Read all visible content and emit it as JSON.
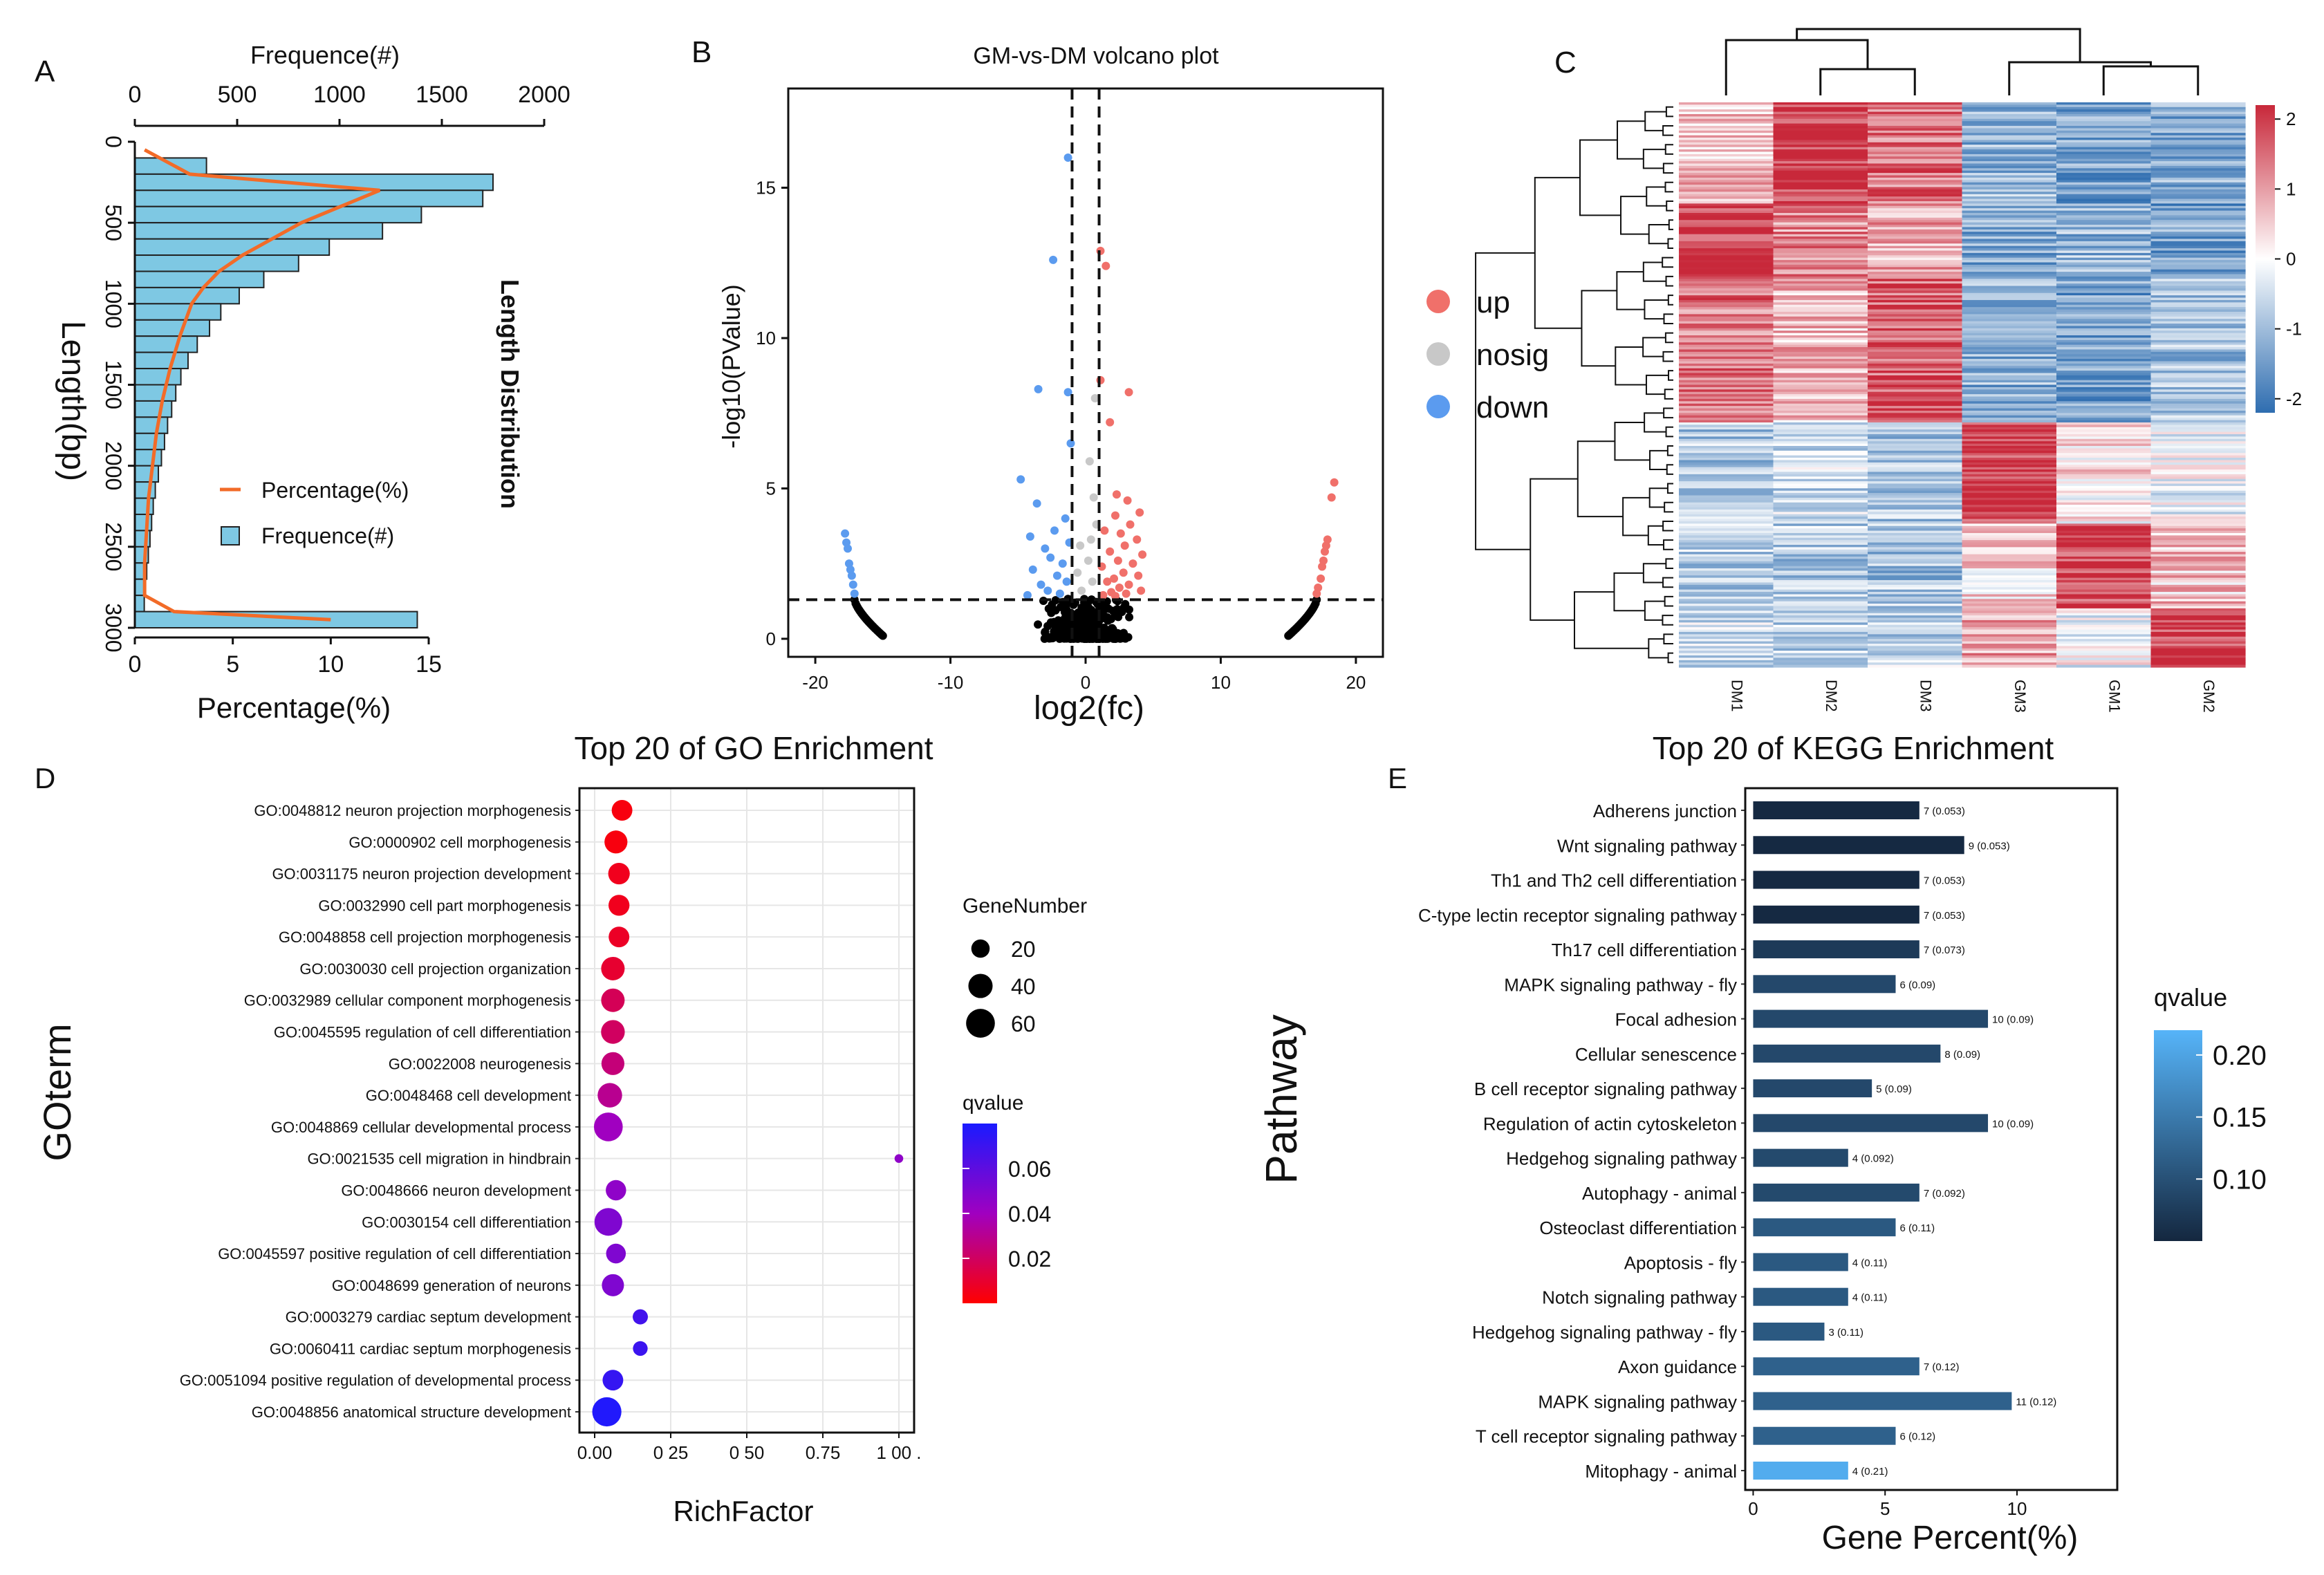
{
  "colors": {
    "bar_fill": "#7ec8e3",
    "line": "#f26b28",
    "up": "#f0706a",
    "nosig": "#c8c8c8",
    "down": "#5b9bef",
    "heat_high": "#c8283a",
    "heat_mid": "#ffffff",
    "heat_low": "#2e6db0",
    "kegg_dark": "#14273f",
    "kegg_light": "#56b4f9"
  },
  "panels": {
    "a": "A",
    "b": "B",
    "c": "C",
    "d": "D",
    "e": "E"
  },
  "chart_data": [
    {
      "id": "A",
      "type": "bar",
      "title": "Length Distribution",
      "ylabel": "Length(bp)",
      "x_top_label": "Frequence(#)",
      "x_bottom_label": "Percentage(%)",
      "y_ticks": [
        "0",
        "500",
        "1000",
        "1500",
        "2000",
        "2500",
        "3000"
      ],
      "y_tick_values": [
        0,
        500,
        1000,
        1500,
        2000,
        2500,
        3000
      ],
      "top_ticks": [
        "0",
        "500",
        "1000",
        "1500",
        "2000"
      ],
      "top_tick_values": [
        0,
        500,
        1000,
        1500,
        2000
      ],
      "bottom_ticks": [
        "0",
        "5",
        "10",
        "15"
      ],
      "bottom_tick_values": [
        0,
        5,
        10,
        15
      ],
      "ylim": [
        0,
        3000
      ],
      "freq_lim": [
        0,
        2000
      ],
      "pct_lim": [
        0,
        15
      ],
      "bin_starts": [
        100,
        200,
        300,
        400,
        500,
        600,
        700,
        800,
        900,
        1000,
        1100,
        1200,
        1300,
        1400,
        1500,
        1600,
        1700,
        1800,
        1900,
        2000,
        2100,
        2200,
        2300,
        2400,
        2500,
        2600,
        2700,
        2800,
        2900
      ],
      "bin_width": 100,
      "frequence": [
        350,
        1750,
        1700,
        1400,
        1210,
        950,
        800,
        630,
        510,
        420,
        365,
        305,
        260,
        225,
        200,
        180,
        160,
        145,
        130,
        115,
        100,
        90,
        82,
        74,
        66,
        58,
        52,
        46,
        1380
      ],
      "percentage_curve": {
        "length": [
          50,
          200,
          300,
          400,
          500,
          600,
          700,
          800,
          900,
          1000,
          1200,
          1400,
          1600,
          1800,
          2000,
          2200,
          2400,
          2600,
          2800,
          2900,
          2950
        ],
        "value": [
          0.5,
          2.8,
          12.5,
          10.5,
          8.5,
          7.0,
          5.5,
          4.3,
          3.5,
          2.9,
          2.3,
          1.8,
          1.4,
          1.1,
          0.9,
          0.7,
          0.6,
          0.5,
          0.5,
          2.0,
          10.0
        ]
      },
      "legend": [
        {
          "label": "Percentage(%)",
          "kind": "line"
        },
        {
          "label": "Frequence(#)",
          "kind": "bar"
        }
      ]
    },
    {
      "id": "B",
      "type": "scatter",
      "title": "GM-vs-DM volcano plot",
      "xlabel": "log2(fc)",
      "ylabel": "-log10(PValue)",
      "xlim": [
        -22,
        22
      ],
      "ylim": [
        -0.6,
        18.3
      ],
      "x_ticks": [
        "-20",
        "-10",
        "0",
        "10",
        "20"
      ],
      "x_tick_values": [
        -20,
        -10,
        0,
        10,
        20
      ],
      "y_ticks": [
        "0",
        "5",
        "10",
        "15"
      ],
      "y_tick_values": [
        0,
        5,
        10,
        15
      ],
      "thresholds": {
        "fc": [
          -1,
          1
        ],
        "p": 1.3
      },
      "legend": [
        {
          "label": "up",
          "group": "up"
        },
        {
          "label": "nosig",
          "group": "nosig"
        },
        {
          "label": "down",
          "group": "down"
        }
      ],
      "points": {
        "up": [
          [
            1.1,
            12.9
          ],
          [
            1.5,
            12.4
          ],
          [
            1.1,
            8.6
          ],
          [
            3.2,
            8.2
          ],
          [
            1.8,
            7.2
          ],
          [
            18.4,
            5.2
          ],
          [
            18.2,
            4.7
          ],
          [
            2.3,
            4.8
          ],
          [
            3.1,
            4.6
          ],
          [
            2.2,
            4.1
          ],
          [
            4.0,
            4.2
          ],
          [
            3.3,
            3.8
          ],
          [
            1.4,
            3.6
          ],
          [
            2.6,
            3.5
          ],
          [
            3.8,
            3.3
          ],
          [
            2.9,
            3.1
          ],
          [
            1.8,
            2.9
          ],
          [
            4.2,
            2.8
          ],
          [
            2.4,
            2.6
          ],
          [
            3.5,
            2.5
          ],
          [
            1.2,
            2.4
          ],
          [
            2.8,
            2.2
          ],
          [
            3.9,
            2.1
          ],
          [
            2.1,
            2.0
          ],
          [
            1.6,
            1.9
          ],
          [
            3.2,
            1.8
          ],
          [
            2.5,
            1.7
          ],
          [
            4.1,
            1.6
          ],
          [
            1.9,
            1.55
          ],
          [
            3.0,
            1.5
          ],
          [
            1.3,
            1.45
          ],
          [
            2.2,
            1.42
          ],
          [
            17.9,
            3.3
          ],
          [
            17.7,
            2.9
          ],
          [
            17.5,
            2.4
          ],
          [
            17.4,
            2.0
          ],
          [
            17.2,
            1.7
          ],
          [
            17.1,
            1.5
          ],
          [
            17.8,
            3.1
          ],
          [
            17.6,
            2.6
          ]
        ],
        "nosig": [
          [
            0.7,
            8.0
          ],
          [
            0.3,
            5.9
          ],
          [
            0.6,
            4.7
          ],
          [
            0.8,
            3.8
          ],
          [
            0.4,
            3.3
          ],
          [
            -0.4,
            3.1
          ],
          [
            0.2,
            2.6
          ],
          [
            -0.6,
            2.2
          ],
          [
            0.5,
            1.9
          ],
          [
            -0.3,
            1.6
          ]
        ],
        "down": [
          [
            -1.3,
            16.0
          ],
          [
            -2.4,
            12.6
          ],
          [
            -3.5,
            8.3
          ],
          [
            -1.3,
            8.2
          ],
          [
            -1.1,
            6.5
          ],
          [
            -4.8,
            5.3
          ],
          [
            -3.6,
            4.5
          ],
          [
            -1.5,
            4.0
          ],
          [
            -2.3,
            3.6
          ],
          [
            -4.1,
            3.4
          ],
          [
            -1.2,
            3.2
          ],
          [
            -3.0,
            3.0
          ],
          [
            -2.6,
            2.7
          ],
          [
            -1.7,
            2.5
          ],
          [
            -3.9,
            2.3
          ],
          [
            -2.1,
            2.1
          ],
          [
            -1.4,
            1.9
          ],
          [
            -3.3,
            1.8
          ],
          [
            -2.8,
            1.6
          ],
          [
            -1.9,
            1.5
          ],
          [
            -4.3,
            1.45
          ],
          [
            -17.8,
            3.5
          ],
          [
            -17.6,
            3.0
          ],
          [
            -17.5,
            2.5
          ],
          [
            -17.3,
            2.1
          ],
          [
            -17.2,
            1.8
          ],
          [
            -17.1,
            1.5
          ],
          [
            -17.7,
            3.2
          ],
          [
            -17.4,
            2.3
          ]
        ],
        "ns_arcs": [
          [
            -17.1,
            1.3,
            -15.0,
            0.1
          ],
          [
            17.1,
            1.3,
            15.0,
            0.1
          ]
        ]
      }
    },
    {
      "id": "C",
      "type": "heatmap",
      "columns": [
        "DM1",
        "DM2",
        "DM3",
        "GM3",
        "GM1",
        "GM2"
      ],
      "colorbar_ticks": [
        "2",
        "1",
        "0",
        "-1",
        "-2"
      ],
      "colorbar_values": [
        2,
        1,
        0,
        -1,
        -2
      ],
      "zlim": [
        -2.2,
        2.2
      ],
      "row_groups": [
        {
          "fraction": 0.18,
          "values": [
            0.6,
            2.1,
            1.4,
            -1.1,
            -1.4,
            -1.2
          ]
        },
        {
          "fraction": 0.13,
          "values": [
            1.9,
            1.2,
            0.9,
            -1.3,
            -1.1,
            -1.4
          ]
        },
        {
          "fraction": 0.26,
          "values": [
            1.4,
            0.7,
            1.6,
            -1.2,
            -1.4,
            -1.0
          ]
        },
        {
          "fraction": 0.18,
          "values": [
            -0.8,
            -0.6,
            -0.9,
            2.0,
            0.3,
            -0.2
          ]
        },
        {
          "fraction": 0.15,
          "values": [
            -0.7,
            -0.8,
            -0.9,
            0.4,
            1.9,
            0.6
          ]
        },
        {
          "fraction": 0.1,
          "values": [
            -0.6,
            -0.8,
            -0.7,
            0.9,
            -0.1,
            2.0
          ]
        }
      ],
      "row_count": 240
    },
    {
      "id": "D",
      "type": "scatter",
      "title": "Top 20 of GO Enrichment",
      "xlabel": "RichFactor",
      "ylabel": "GOterm",
      "xlim": [
        -0.05,
        1.05
      ],
      "x_ticks": [
        "0.00",
        "0 25",
        "0 50",
        "0.75",
        "1 00 ."
      ],
      "x_tick_values": [
        0,
        0.25,
        0.5,
        0.75,
        1.0
      ],
      "size_legend_title": "GeneNumber",
      "size_legend": [
        "20",
        "40",
        "60"
      ],
      "size_legend_values": [
        20,
        40,
        60
      ],
      "color_legend_title": "qvalue",
      "color_legend_ticks": [
        "0.06",
        "0.04",
        "0.02"
      ],
      "color_legend_values": [
        0.06,
        0.04,
        0.02
      ],
      "qlim": [
        0.0,
        0.08
      ],
      "terms": [
        {
          "label": "GO:0048812 neuron projection morphogenesis",
          "rich": 0.09,
          "gene": 27,
          "q": 0.003
        },
        {
          "label": "GO:0000902 cell morphogenesis",
          "rich": 0.07,
          "gene": 35,
          "q": 0.003
        },
        {
          "label": "GO:0031175 neuron projection development",
          "rich": 0.08,
          "gene": 30,
          "q": 0.006
        },
        {
          "label": "GO:0032990 cell part morphogenesis",
          "rich": 0.08,
          "gene": 28,
          "q": 0.006
        },
        {
          "label": "GO:0048858 cell projection morphogenesis",
          "rich": 0.08,
          "gene": 27,
          "q": 0.008
        },
        {
          "label": "GO:0030030 cell projection organization",
          "rich": 0.06,
          "gene": 37,
          "q": 0.01
        },
        {
          "label": "GO:0032989 cellular component morphogenesis",
          "rich": 0.06,
          "gene": 37,
          "q": 0.018
        },
        {
          "label": "GO:0045595 regulation of cell differentiation",
          "rich": 0.06,
          "gene": 38,
          "q": 0.02
        },
        {
          "label": "GO:0022008 neurogenesis",
          "rich": 0.06,
          "gene": 35,
          "q": 0.025
        },
        {
          "label": "GO:0048468 cell development",
          "rich": 0.05,
          "gene": 41,
          "q": 0.03
        },
        {
          "label": "GO:0048869 cellular developmental process",
          "rich": 0.045,
          "gene": 60,
          "q": 0.04
        },
        {
          "label": "GO:0021535 cell migration in hindbrain",
          "rich": 1.0,
          "gene": 2,
          "q": 0.045
        },
        {
          "label": "GO:0048666 neuron development",
          "rich": 0.07,
          "gene": 26,
          "q": 0.045
        },
        {
          "label": "GO:0030154 cell differentiation",
          "rich": 0.045,
          "gene": 55,
          "q": 0.05
        },
        {
          "label": "GO:0045597 positive regulation of cell differentiation",
          "rich": 0.07,
          "gene": 24,
          "q": 0.05
        },
        {
          "label": "GO:0048699 generation of neurons",
          "rich": 0.06,
          "gene": 32,
          "q": 0.05
        },
        {
          "label": "GO:0003279 cardiac septum development",
          "rich": 0.15,
          "gene": 12,
          "q": 0.068
        },
        {
          "label": "GO:0060411 cardiac septum morphogenesis",
          "rich": 0.15,
          "gene": 11,
          "q": 0.07
        },
        {
          "label": "GO:0051094 positive regulation of developmental process",
          "rich": 0.06,
          "gene": 27,
          "q": 0.072
        },
        {
          "label": "GO:0048856 anatomical structure development",
          "rich": 0.04,
          "gene": 62,
          "q": 0.078
        }
      ]
    },
    {
      "id": "E",
      "type": "bar",
      "orientation": "horizontal",
      "title": "Top 20 of KEGG Enrichment",
      "xlabel": "Gene Percent(%)",
      "ylabel": "Pathway",
      "xlim": [
        -0.3,
        13.8
      ],
      "x_ticks": [
        "0",
        "5",
        "10"
      ],
      "x_tick_values": [
        0,
        5,
        10
      ],
      "color_legend_title": "qvalue",
      "color_legend_ticks": [
        "0.20",
        "0.15",
        "0.10"
      ],
      "color_legend_values": [
        0.2,
        0.15,
        0.1
      ],
      "qlim": [
        0.05,
        0.22
      ],
      "pathways": [
        {
          "label": "Adherens junction",
          "value": 6.3,
          "bar_label": "7 (0.053)",
          "q": 0.053
        },
        {
          "label": "Wnt signaling pathway",
          "value": 8.0,
          "bar_label": "9 (0.053)",
          "q": 0.053
        },
        {
          "label": "Th1 and Th2 cell differentiation",
          "value": 6.3,
          "bar_label": "7 (0.053)",
          "q": 0.053
        },
        {
          "label": "C-type lectin receptor signaling pathway",
          "value": 6.3,
          "bar_label": "7 (0.053)",
          "q": 0.053
        },
        {
          "label": "Th17 cell differentiation",
          "value": 6.3,
          "bar_label": "7 (0.073)",
          "q": 0.073
        },
        {
          "label": "MAPK signaling pathway - fly",
          "value": 5.4,
          "bar_label": "6 (0.09)",
          "q": 0.09
        },
        {
          "label": "Focal adhesion",
          "value": 8.9,
          "bar_label": "10 (0.09)",
          "q": 0.09
        },
        {
          "label": "Cellular senescence",
          "value": 7.1,
          "bar_label": "8 (0.09)",
          "q": 0.09
        },
        {
          "label": "B cell receptor signaling pathway",
          "value": 4.5,
          "bar_label": "5 (0.09)",
          "q": 0.09
        },
        {
          "label": "Regulation of actin cytoskeleton",
          "value": 8.9,
          "bar_label": "10 (0.09)",
          "q": 0.09
        },
        {
          "label": "Hedgehog signaling pathway",
          "value": 3.6,
          "bar_label": "4 (0.092)",
          "q": 0.092
        },
        {
          "label": "Autophagy - animal",
          "value": 6.3,
          "bar_label": "7 (0.092)",
          "q": 0.092
        },
        {
          "label": "Osteoclast differentiation",
          "value": 5.4,
          "bar_label": "6 (0.11)",
          "q": 0.11
        },
        {
          "label": "Apoptosis - fly",
          "value": 3.6,
          "bar_label": "4 (0.11)",
          "q": 0.11
        },
        {
          "label": "Notch signaling pathway",
          "value": 3.6,
          "bar_label": "4 (0.11)",
          "q": 0.11
        },
        {
          "label": "Hedgehog signaling pathway - fly",
          "value": 2.7,
          "bar_label": "3 (0.11)",
          "q": 0.11
        },
        {
          "label": "Axon guidance",
          "value": 6.3,
          "bar_label": "7 (0.12)",
          "q": 0.12
        },
        {
          "label": "MAPK signaling pathway",
          "value": 9.8,
          "bar_label": "11 (0.12)",
          "q": 0.12
        },
        {
          "label": "T cell receptor signaling pathway",
          "value": 5.4,
          "bar_label": "6 (0.12)",
          "q": 0.12
        },
        {
          "label": "Mitophagy - animal",
          "value": 3.6,
          "bar_label": "4 (0.21)",
          "q": 0.21
        }
      ]
    }
  ]
}
